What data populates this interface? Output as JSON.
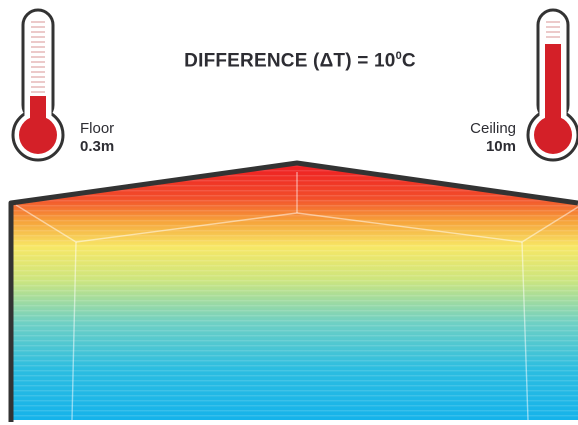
{
  "title": {
    "prefix": "DIFFERENCE (ΔT) = 10",
    "degree": "0",
    "unit": "C"
  },
  "floor": {
    "label": "Floor",
    "height": "0.3m",
    "level": 0.3
  },
  "ceiling": {
    "label": "Ceiling",
    "height": "10m",
    "level": 0.78
  },
  "colors": {
    "outline": "#333333",
    "thermometer_red": "#d42028",
    "gradient_top": "#ef2b22",
    "gradient_mid": "#f7ee6a",
    "gradient_bottom": "#1bb8e8"
  }
}
